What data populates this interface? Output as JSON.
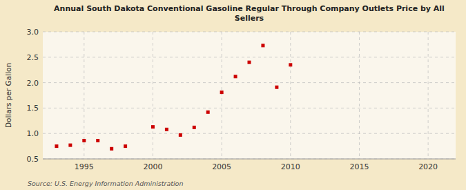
{
  "chart_data": {
    "type": "scatter",
    "title": "Annual South Dakota Conventional Gasoline Regular Through Company Outlets Price by All\nSellers",
    "ylabel": "Dollars per Gallon",
    "source": "Source: U.S. Energy Information Administration",
    "x": [
      1993,
      1994,
      1995,
      1996,
      1997,
      1998,
      2000,
      2001,
      2002,
      2003,
      2004,
      2005,
      2006,
      2007,
      2008,
      2009,
      2010
    ],
    "values": [
      0.75,
      0.77,
      0.86,
      0.86,
      0.7,
      0.75,
      1.13,
      1.08,
      0.97,
      1.12,
      1.42,
      1.81,
      2.12,
      2.4,
      2.73,
      1.91,
      2.35
    ],
    "color": "#cc0000",
    "marker": "square",
    "xlim": [
      1992,
      2022
    ],
    "ylim": [
      0.5,
      3.0
    ],
    "xticks": [
      1995,
      2000,
      2005,
      2010,
      2015,
      2020
    ],
    "yticks": [
      0.5,
      {
        "value": 1.0,
        "label": "1.0"
      },
      1.5,
      {
        "value": 2.0,
        "label": "2.0"
      },
      2.5,
      {
        "value": 3.0,
        "label": "3.0"
      }
    ],
    "grid": true
  }
}
